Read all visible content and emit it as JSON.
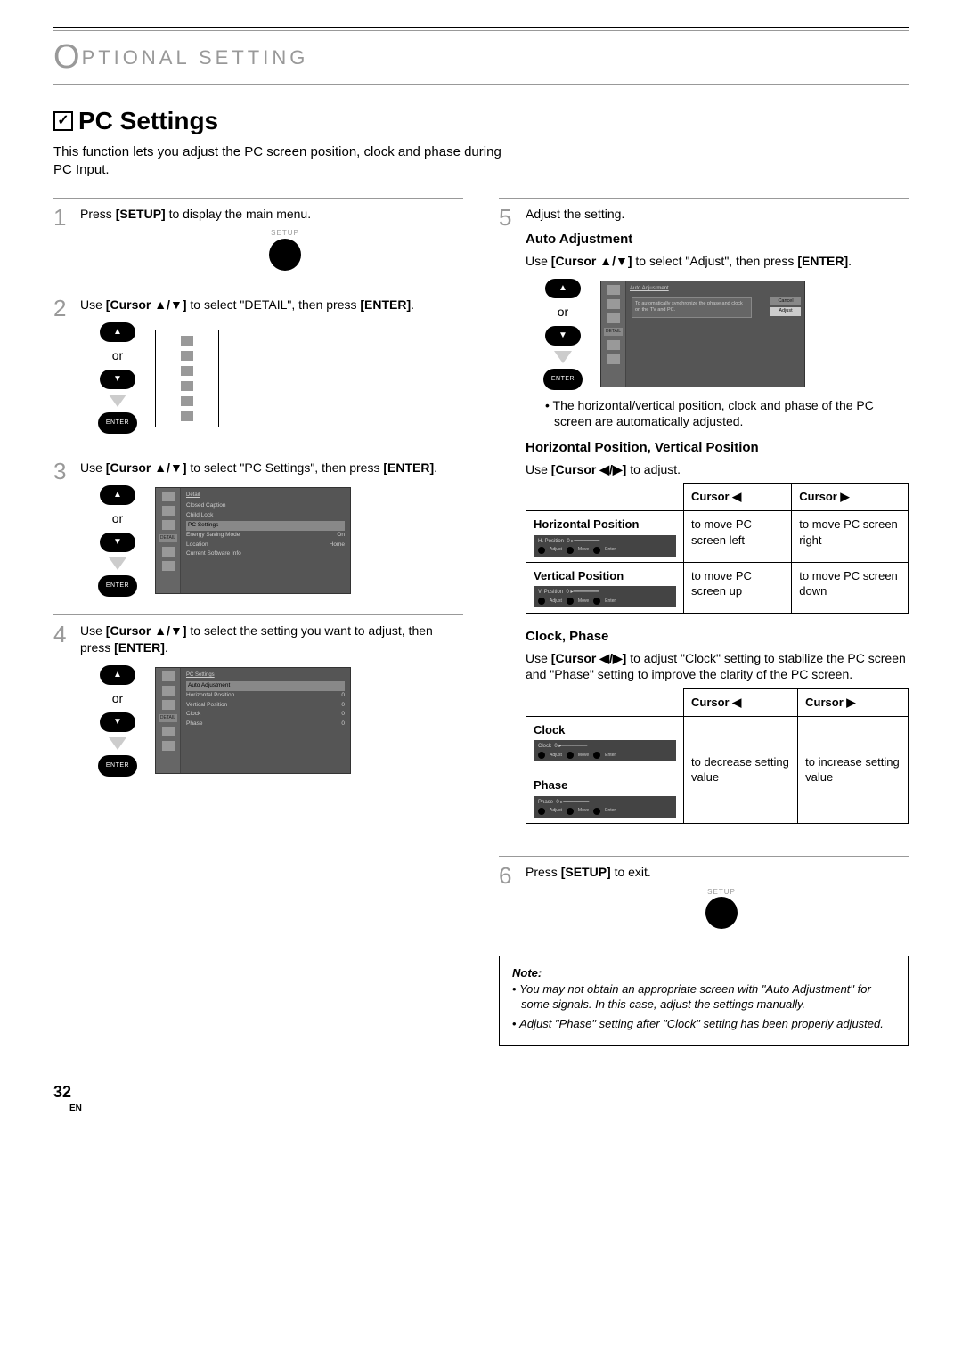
{
  "chapter": {
    "letter": "O",
    "rest": "PTIONAL   SETTING"
  },
  "title": "PC Settings",
  "intro_line1": "This function lets you adjust the PC screen position, clock and phase during",
  "intro_line2": "PC Input.",
  "labels": {
    "or": "or",
    "setup": "SETUP",
    "enter": "ENTER"
  },
  "steps": {
    "s1": {
      "num": "1",
      "pre": "Press ",
      "bold": "[SETUP]",
      "post": " to display the main menu."
    },
    "s2": {
      "num": "2",
      "pre": "Use ",
      "bold": "[Cursor ▲/▼]",
      "mid": " to select \"DETAIL\", then press ",
      "bold2": "[ENTER]",
      "post": "."
    },
    "s3": {
      "num": "3",
      "pre": "Use ",
      "bold": "[Cursor ▲/▼]",
      "mid": " to select \"PC Settings\", then press ",
      "bold2": "[ENTER]",
      "post": "."
    },
    "s4": {
      "num": "4",
      "pre": "Use ",
      "bold": "[Cursor ▲/▼]",
      "mid": " to select the setting you want to adjust, then press ",
      "bold2": "[ENTER]",
      "post": "."
    },
    "s5": {
      "num": "5",
      "text": "Adjust the setting."
    },
    "s6": {
      "num": "6",
      "pre": "Press ",
      "bold": "[SETUP]",
      "post": " to exit."
    }
  },
  "osd_detail": {
    "title": "Detail",
    "items": [
      {
        "l": "Closed Caption",
        "r": ""
      },
      {
        "l": "Child Lock",
        "r": ""
      },
      {
        "l": "PC Settings",
        "r": "",
        "sel": true
      },
      {
        "l": "Energy Saving Mode",
        "r": "On"
      },
      {
        "l": "Location",
        "r": "Home"
      },
      {
        "l": "Current Software Info",
        "r": ""
      }
    ],
    "side_label": "DETAIL"
  },
  "osd_pc": {
    "title": "PC Settings",
    "items": [
      {
        "l": "Auto Adjustment",
        "r": "",
        "sel": true
      },
      {
        "l": "Horizontal Position",
        "r": "0"
      },
      {
        "l": "Vertical Position",
        "r": "0"
      },
      {
        "l": "Clock",
        "r": "0"
      },
      {
        "l": "Phase",
        "r": "0"
      }
    ],
    "side_label": "DETAIL"
  },
  "auto_adjust": {
    "heading": "Auto Adjustment",
    "pre": "Use ",
    "bold": "[Cursor ▲/▼]",
    "mid": " to select \"Adjust\", then press ",
    "bold2": "[ENTER]",
    "post": ".",
    "osd_title": "Auto Adjustment",
    "dialog": "To automatically synchronize the phase and clock on the TV and PC.",
    "btn_cancel": "Cancel",
    "btn_adjust": "Adjust",
    "bullet": "The horizontal/vertical position, clock and phase of the PC screen are automatically adjusted."
  },
  "hv": {
    "heading": "Horizontal Position, Vertical Position",
    "pre": "Use ",
    "bold": "[Cursor ◀/▶]",
    "post": " to adjust.",
    "th_left": "Cursor ◀",
    "th_right": "Cursor ▶",
    "row_h": "Horizontal Position",
    "row_v": "Vertical Position",
    "h_bar": "H. Position",
    "v_bar": "V. Position",
    "h_left": "to move PC screen left",
    "h_right": "to move PC screen right",
    "v_left": "to move PC screen up",
    "v_right": "to move PC screen down",
    "bar_labels": {
      "adjust": "Adjust",
      "move": "Move",
      "enter": "Enter",
      "val": "0"
    }
  },
  "cp": {
    "heading": "Clock, Phase",
    "pre": "Use ",
    "bold": "[Cursor ◀/▶]",
    "mid": " to adjust \"Clock\" setting to stabilize the PC screen and \"Phase\" setting to improve the clarity of the PC screen.",
    "th_left": "Cursor ◀",
    "th_right": "Cursor ▶",
    "row_c": "Clock",
    "row_p": "Phase",
    "left": "to decrease setting value",
    "right": "to increase setting value"
  },
  "note": {
    "title": "Note:",
    "b1": "You may not obtain an appropriate screen with \"Auto Adjustment\" for some signals. In this case, adjust the settings manually.",
    "b2": "Adjust \"Phase\" setting after \"Clock\" setting has been properly adjusted."
  },
  "page": {
    "num": "32",
    "lang": "EN"
  }
}
